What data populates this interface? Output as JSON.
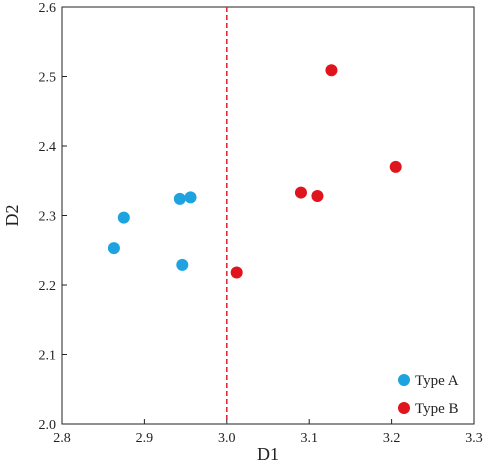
{
  "chart_data": {
    "type": "scatter",
    "title": "",
    "xlabel": "D1",
    "ylabel": "D2",
    "xlim": [
      2.8,
      3.3
    ],
    "ylim": [
      2.0,
      2.6
    ],
    "xticks": [
      "2.8",
      "2.9",
      "3.0",
      "3.1",
      "3.2",
      "3.3"
    ],
    "yticks": [
      "2.0",
      "2.1",
      "2.2",
      "2.3",
      "2.4",
      "2.5",
      "2.6"
    ],
    "grid": false,
    "legend_position": "bottom-right",
    "reference_line": {
      "axis": "x",
      "value": 3.0,
      "style": "dashed",
      "color": "#e0202a"
    },
    "series": [
      {
        "name": "Type A",
        "color": "#1ea3e0",
        "points": [
          {
            "x": 2.863,
            "y": 2.253
          },
          {
            "x": 2.875,
            "y": 2.297
          },
          {
            "x": 2.943,
            "y": 2.324
          },
          {
            "x": 2.956,
            "y": 2.326
          },
          {
            "x": 2.946,
            "y": 2.229
          }
        ]
      },
      {
        "name": "Type B",
        "color": "#e0141c",
        "points": [
          {
            "x": 3.127,
            "y": 2.509
          },
          {
            "x": 3.205,
            "y": 2.37
          },
          {
            "x": 3.09,
            "y": 2.333
          },
          {
            "x": 3.11,
            "y": 2.328
          },
          {
            "x": 3.012,
            "y": 2.218
          }
        ]
      }
    ]
  }
}
